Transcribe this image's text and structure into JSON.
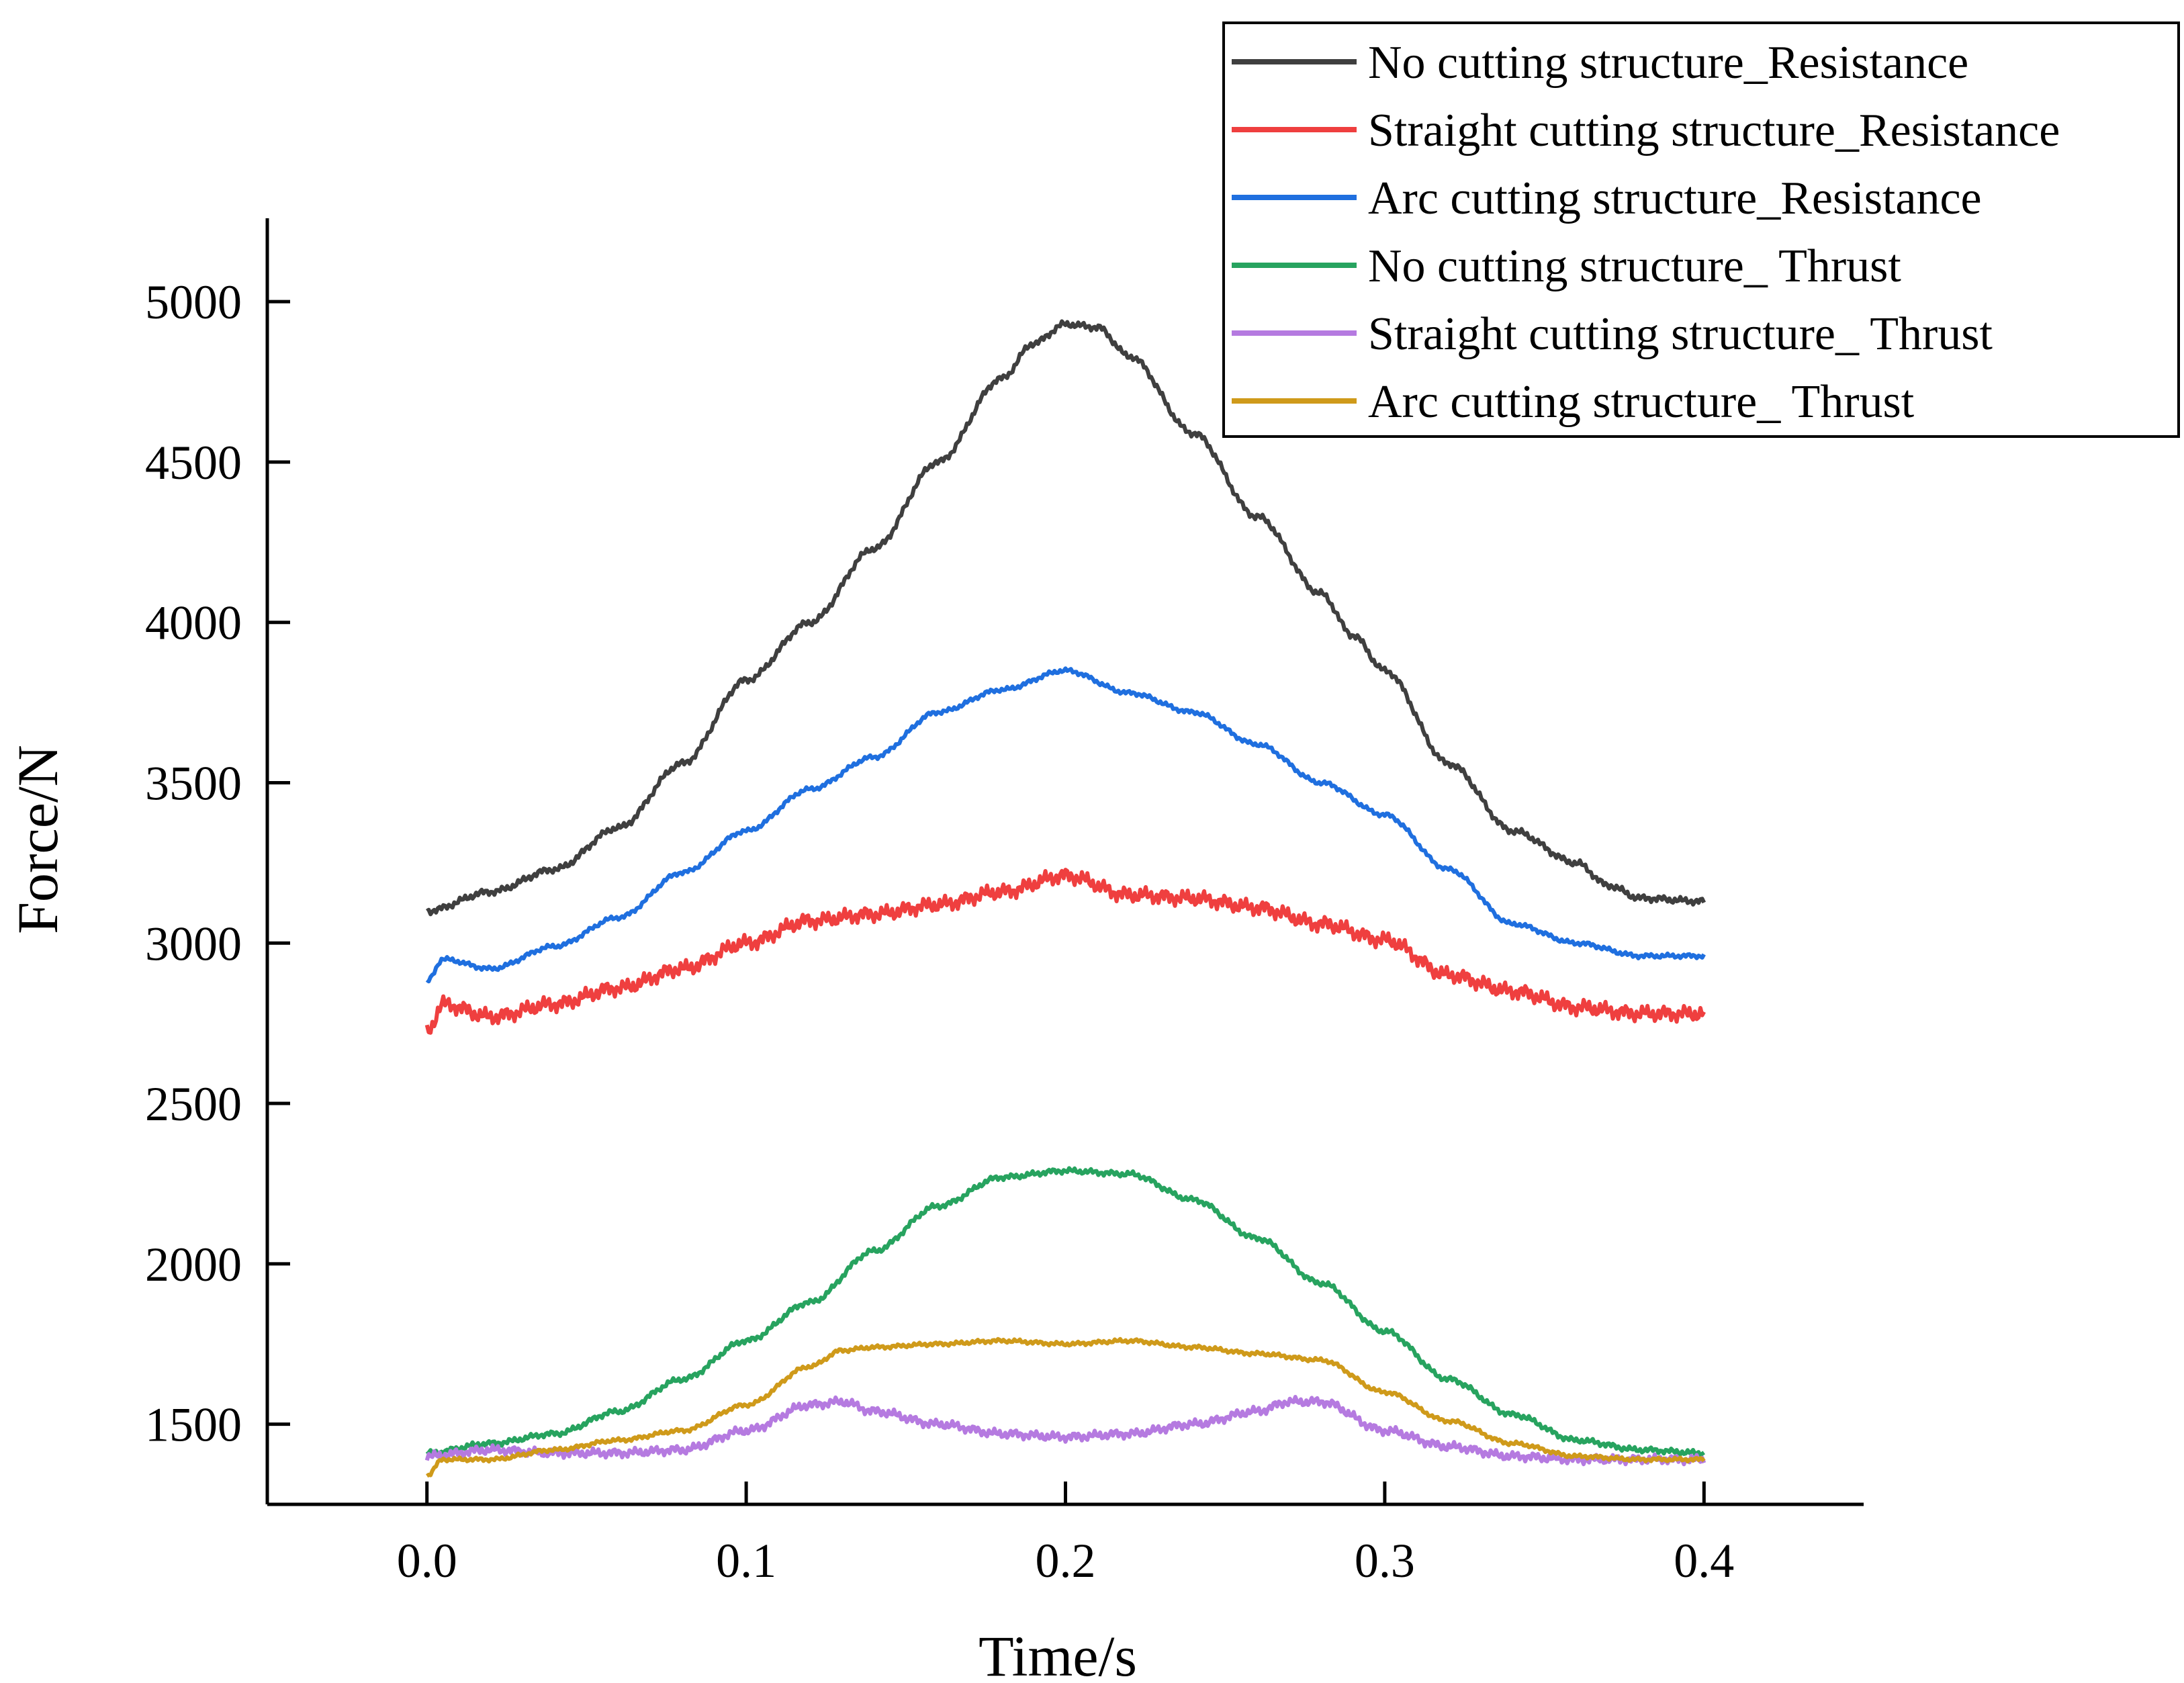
{
  "chart_data": {
    "type": "line",
    "title": "",
    "xlabel": "Time/s",
    "ylabel": "Force/N",
    "xlim": [
      -0.05,
      0.45
    ],
    "ylim": [
      1250,
      5260
    ],
    "xticks": [
      0.0,
      0.1,
      0.2,
      0.3,
      0.4
    ],
    "xtick_labels": [
      "0.0",
      "0.1",
      "0.2",
      "0.3",
      "0.4"
    ],
    "yticks": [
      1500,
      2000,
      2500,
      3000,
      3500,
      4000,
      4500,
      5000
    ],
    "ytick_labels": [
      "1500",
      "2000",
      "2500",
      "3000",
      "3500",
      "4000",
      "4500",
      "5000"
    ],
    "grid": false,
    "legend_position": "top-right",
    "series": [
      {
        "name": "No cutting structure_Resistance",
        "color": "#3f3f3f",
        "noise": 12,
        "x": [
          0.0,
          0.02,
          0.04,
          0.06,
          0.08,
          0.1,
          0.12,
          0.14,
          0.16,
          0.18,
          0.19,
          0.2,
          0.21,
          0.22,
          0.24,
          0.26,
          0.28,
          0.29,
          0.3,
          0.32,
          0.34,
          0.36,
          0.37,
          0.38,
          0.4
        ],
        "y": [
          3100,
          3160,
          3230,
          3360,
          3560,
          3820,
          4000,
          4230,
          4500,
          4760,
          4870,
          4930,
          4920,
          4830,
          4590,
          4330,
          4090,
          3960,
          3850,
          3560,
          3350,
          3250,
          3180,
          3140,
          3130
        ]
      },
      {
        "name": "Straight cutting structure_Resistance",
        "color": "#ef3f3f",
        "noise": 28,
        "x": [
          0.0,
          0.005,
          0.02,
          0.04,
          0.06,
          0.08,
          0.1,
          0.12,
          0.14,
          0.16,
          0.18,
          0.2,
          0.22,
          0.24,
          0.26,
          0.28,
          0.3,
          0.32,
          0.34,
          0.36,
          0.38,
          0.4
        ],
        "y": [
          2720,
          2810,
          2770,
          2810,
          2860,
          2920,
          3000,
          3070,
          3090,
          3120,
          3160,
          3210,
          3150,
          3140,
          3110,
          3060,
          3010,
          2900,
          2850,
          2800,
          2780,
          2780
        ]
      },
      {
        "name": "Arc cutting structure_Resistance",
        "color": "#1f6fdf",
        "noise": 8,
        "x": [
          0.0,
          0.005,
          0.02,
          0.04,
          0.06,
          0.08,
          0.1,
          0.12,
          0.14,
          0.16,
          0.18,
          0.2,
          0.22,
          0.24,
          0.26,
          0.28,
          0.3,
          0.32,
          0.34,
          0.36,
          0.38,
          0.4
        ],
        "y": [
          2880,
          2950,
          2920,
          2990,
          3080,
          3220,
          3350,
          3480,
          3580,
          3720,
          3790,
          3850,
          3780,
          3720,
          3620,
          3500,
          3400,
          3230,
          3060,
          3000,
          2960,
          2960
        ]
      },
      {
        "name": "No cutting structure_ Thrust",
        "color": "#27a35f",
        "noise": 10,
        "x": [
          0.0,
          0.02,
          0.04,
          0.06,
          0.08,
          0.1,
          0.12,
          0.14,
          0.16,
          0.18,
          0.2,
          0.22,
          0.24,
          0.26,
          0.28,
          0.3,
          0.32,
          0.34,
          0.36,
          0.38,
          0.4
        ],
        "y": [
          1410,
          1440,
          1470,
          1540,
          1640,
          1760,
          1880,
          2040,
          2180,
          2270,
          2290,
          2280,
          2200,
          2080,
          1940,
          1790,
          1640,
          1530,
          1450,
          1420,
          1410
        ]
      },
      {
        "name": "Straight cutting structure_ Thrust",
        "color": "#b57ae0",
        "noise": 16,
        "x": [
          0.0,
          0.02,
          0.04,
          0.06,
          0.08,
          0.1,
          0.12,
          0.13,
          0.14,
          0.16,
          0.18,
          0.2,
          0.22,
          0.24,
          0.26,
          0.27,
          0.28,
          0.3,
          0.32,
          0.34,
          0.36,
          0.38,
          0.4
        ],
        "y": [
          1400,
          1420,
          1410,
          1410,
          1420,
          1480,
          1560,
          1570,
          1540,
          1500,
          1470,
          1460,
          1470,
          1500,
          1540,
          1570,
          1570,
          1480,
          1430,
          1400,
          1390,
          1390,
          1390
        ]
      },
      {
        "name": "Arc cutting structure_ Thrust",
        "color": "#cf9a1a",
        "noise": 7,
        "x": [
          0.0,
          0.005,
          0.02,
          0.04,
          0.06,
          0.08,
          0.1,
          0.12,
          0.13,
          0.14,
          0.16,
          0.18,
          0.2,
          0.22,
          0.24,
          0.26,
          0.28,
          0.3,
          0.32,
          0.34,
          0.36,
          0.38,
          0.4
        ],
        "y": [
          1340,
          1390,
          1390,
          1420,
          1450,
          1480,
          1560,
          1680,
          1730,
          1740,
          1750,
          1760,
          1750,
          1760,
          1740,
          1720,
          1700,
          1600,
          1510,
          1440,
          1400,
          1390,
          1390
        ]
      }
    ]
  }
}
